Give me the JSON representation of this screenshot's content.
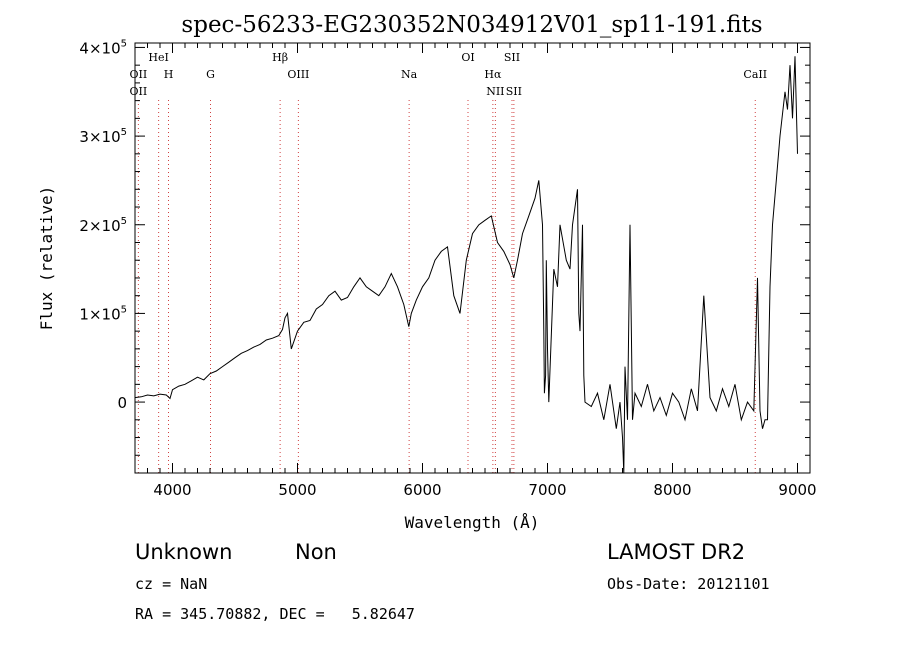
{
  "chart_data": {
    "type": "line",
    "title": "spec-56233-EG230352N034912V01_sp11-191.fits",
    "xlabel": "Wavelength (Å)",
    "ylabel": "Flux (relative)",
    "xlim": [
      3700,
      9100
    ],
    "ylim": [
      -80000,
      405000
    ],
    "x_ticks": [
      {
        "value": 4000,
        "label": "4000"
      },
      {
        "value": 5000,
        "label": "5000"
      },
      {
        "value": 6000,
        "label": "6000"
      },
      {
        "value": 7000,
        "label": "7000"
      },
      {
        "value": 8000,
        "label": "8000"
      },
      {
        "value": 9000,
        "label": "9000"
      }
    ],
    "y_ticks": [
      {
        "value": 0,
        "mant": "0",
        "exp": ""
      },
      {
        "value": 100000,
        "mant": "1×10",
        "exp": "5"
      },
      {
        "value": 200000,
        "mant": "2×10",
        "exp": "5"
      },
      {
        "value": 300000,
        "mant": "3×10",
        "exp": "5"
      },
      {
        "value": 400000,
        "mant": "4×10",
        "exp": "5"
      }
    ],
    "grid": false,
    "emission_lines": [
      {
        "label": "OII",
        "wavelength": 3727,
        "row": 1
      },
      {
        "label": "HeI",
        "wavelength": 3889,
        "row": 0
      },
      {
        "label": "H",
        "wavelength": 3968,
        "row": 1
      },
      {
        "label": "G",
        "wavelength": 4304,
        "row": 1
      },
      {
        "label": "Hβ",
        "wavelength": 4861,
        "row": 0
      },
      {
        "label": "OIII",
        "wavelength": 5007,
        "row": 1
      },
      {
        "label": "Na",
        "wavelength": 5893,
        "row": 1
      },
      {
        "label": "OI",
        "wavelength": 6364,
        "row": 0
      },
      {
        "label": "Hα",
        "wavelength": 6563,
        "row": 1
      },
      {
        "label": "NII",
        "wavelength": 6583,
        "row": 2
      },
      {
        "label": "SII",
        "wavelength": 6716,
        "row": 0
      },
      {
        "label": "SII",
        "wavelength": 6731,
        "row": 2
      },
      {
        "label": "CaII",
        "wavelength": 8662,
        "row": 1
      }
    ],
    "extra_labels": [
      {
        "label": "OII",
        "wavelength": 3727,
        "row": 2
      }
    ],
    "series": [
      {
        "x": [
          3700,
          3750,
          3800,
          3850,
          3900,
          3950,
          3980,
          4000,
          4050,
          4100,
          4150,
          4200,
          4250,
          4300,
          4350,
          4400,
          4450,
          4500,
          4550,
          4600,
          4650,
          4700,
          4750,
          4800,
          4850,
          4880,
          4900,
          4920,
          4950,
          5000,
          5050,
          5100,
          5150,
          5200,
          5250,
          5300,
          5350,
          5400,
          5450,
          5500,
          5550,
          5600,
          5650,
          5700,
          5750,
          5800,
          5850,
          5890,
          5910,
          5950,
          6000,
          6050,
          6100,
          6150,
          6200,
          6250,
          6300,
          6350,
          6400,
          6450,
          6500,
          6550,
          6600,
          6650,
          6700,
          6730,
          6760,
          6800,
          6850,
          6900,
          6930,
          6960,
          6970,
          6975,
          6985,
          6990,
          7000,
          7010,
          7050,
          7080,
          7100,
          7150,
          7180,
          7200,
          7240,
          7250,
          7260,
          7280,
          7290,
          7300,
          7350,
          7400,
          7450,
          7500,
          7550,
          7580,
          7600,
          7610,
          7620,
          7640,
          7660,
          7680,
          7700,
          7750,
          7800,
          7850,
          7900,
          7950,
          8000,
          8050,
          8100,
          8150,
          8200,
          8250,
          8300,
          8350,
          8400,
          8450,
          8500,
          8550,
          8600,
          8650,
          8680,
          8700,
          8720,
          8740,
          8760,
          8780,
          8800,
          8830,
          8860,
          8900,
          8920,
          8940,
          8960,
          8980,
          9000
        ],
        "y": [
          5000,
          6000,
          8000,
          7000,
          9000,
          8000,
          4000,
          14000,
          18000,
          20000,
          24000,
          28000,
          25000,
          32000,
          35000,
          40000,
          45000,
          50000,
          55000,
          58000,
          62000,
          65000,
          70000,
          72000,
          75000,
          82000,
          95000,
          100000,
          60000,
          80000,
          90000,
          92000,
          105000,
          110000,
          120000,
          125000,
          115000,
          118000,
          130000,
          140000,
          130000,
          125000,
          120000,
          130000,
          145000,
          130000,
          110000,
          85000,
          100000,
          115000,
          130000,
          140000,
          160000,
          170000,
          175000,
          120000,
          100000,
          160000,
          190000,
          200000,
          205000,
          210000,
          180000,
          170000,
          155000,
          140000,
          160000,
          190000,
          210000,
          230000,
          250000,
          200000,
          80000,
          10000,
          30000,
          160000,
          60000,
          0,
          150000,
          130000,
          200000,
          160000,
          150000,
          200000,
          240000,
          100000,
          80000,
          200000,
          30000,
          0,
          -5000,
          10000,
          -20000,
          20000,
          -30000,
          0,
          -40000,
          -80000,
          40000,
          -20000,
          200000,
          -20000,
          10000,
          -5000,
          20000,
          -10000,
          5000,
          -15000,
          10000,
          0,
          -20000,
          15000,
          -10000,
          120000,
          5000,
          -10000,
          15000,
          -5000,
          20000,
          -20000,
          0,
          -10000,
          140000,
          -10000,
          -30000,
          -20000,
          -20000,
          130000,
          200000,
          250000,
          300000,
          350000,
          330000,
          380000,
          320000,
          390000,
          280000
        ]
      }
    ]
  },
  "info": {
    "class_label": "Unknown",
    "subclass_label": "Non",
    "survey_label": "LAMOST DR2",
    "cz_text": "cz = NaN",
    "obs_date_text": "Obs-Date: 20121101",
    "radec_text": "RA = 345.70882, DEC =   5.82647"
  }
}
